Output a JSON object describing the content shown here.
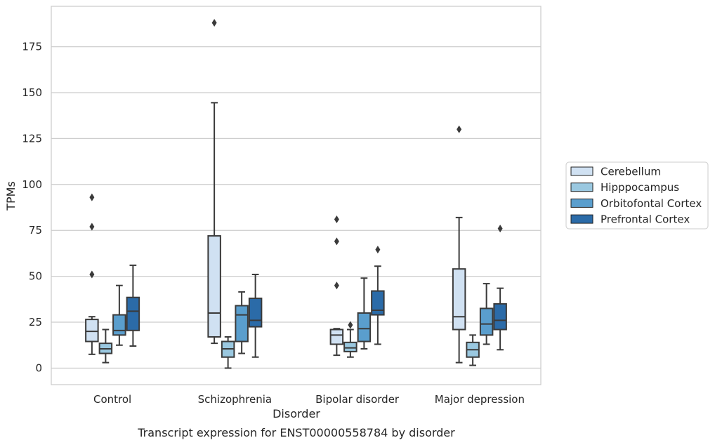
{
  "chart_data": {
    "type": "boxplot",
    "title": "",
    "caption": "Transcript expression for ENST00000558784 by disorder",
    "xlabel": "Disorder",
    "ylabel": "TPMs",
    "ylim": [
      -9,
      197
    ],
    "yticks": [
      0,
      25,
      50,
      75,
      100,
      125,
      150,
      175
    ],
    "grid": "horizontal",
    "legend_position": "right",
    "categories": [
      "Control",
      "Schizophrenia",
      "Bipolar disorder",
      "Major depression"
    ],
    "series": [
      {
        "name": "Cerebellum",
        "color": "#d0e1f2",
        "boxes": [
          {
            "whislo": 7.5,
            "q1": 14.5,
            "med": 20,
            "q3": 26.5,
            "whishi": 28,
            "fliers": [
              51,
              77,
              93
            ]
          },
          {
            "whislo": 13.5,
            "q1": 17,
            "med": 30,
            "q3": 72,
            "whishi": 144.5,
            "fliers": [
              188
            ]
          },
          {
            "whislo": 7,
            "q1": 13,
            "med": 18,
            "q3": 21,
            "whishi": 21.5,
            "fliers": [
              45,
              69,
              81
            ]
          },
          {
            "whislo": 3,
            "q1": 21,
            "med": 28,
            "q3": 54,
            "whishi": 82,
            "fliers": [
              130
            ]
          }
        ]
      },
      {
        "name": "Hipppocampus",
        "color": "#9ac8e0",
        "boxes": [
          {
            "whislo": 3,
            "q1": 8,
            "med": 10.5,
            "q3": 13.5,
            "whishi": 21,
            "fliers": []
          },
          {
            "whislo": 0,
            "q1": 6,
            "med": 10.5,
            "q3": 14.5,
            "whishi": 17,
            "fliers": []
          },
          {
            "whislo": 6,
            "q1": 9,
            "med": 11,
            "q3": 14,
            "whishi": 21,
            "fliers": [
              23.5
            ]
          },
          {
            "whislo": 1.5,
            "q1": 6,
            "med": 10,
            "q3": 14,
            "whishi": 18,
            "fliers": []
          }
        ]
      },
      {
        "name": "Orbitofontal Cortex",
        "color": "#5a9ecd",
        "boxes": [
          {
            "whislo": 12.5,
            "q1": 18,
            "med": 20.5,
            "q3": 29,
            "whishi": 45,
            "fliers": []
          },
          {
            "whislo": 8,
            "q1": 14.5,
            "med": 29,
            "q3": 34,
            "whishi": 41.5,
            "fliers": []
          },
          {
            "whislo": 10.5,
            "q1": 14.5,
            "med": 21.5,
            "q3": 30,
            "whishi": 49,
            "fliers": []
          },
          {
            "whislo": 13,
            "q1": 18,
            "med": 24,
            "q3": 32.5,
            "whishi": 46,
            "fliers": []
          }
        ]
      },
      {
        "name": "Prefrontal Cortex",
        "color": "#2b6ba8",
        "boxes": [
          {
            "whislo": 12,
            "q1": 20.5,
            "med": 31,
            "q3": 38.5,
            "whishi": 56,
            "fliers": []
          },
          {
            "whislo": 6,
            "q1": 22.5,
            "med": 26,
            "q3": 38,
            "whishi": 51,
            "fliers": []
          },
          {
            "whislo": 13,
            "q1": 29,
            "med": 31.5,
            "q3": 42,
            "whishi": 55.5,
            "fliers": [
              64.5
            ]
          },
          {
            "whislo": 10,
            "q1": 21,
            "med": 26,
            "q3": 35,
            "whishi": 43.5,
            "fliers": [
              76
            ]
          }
        ]
      }
    ]
  }
}
